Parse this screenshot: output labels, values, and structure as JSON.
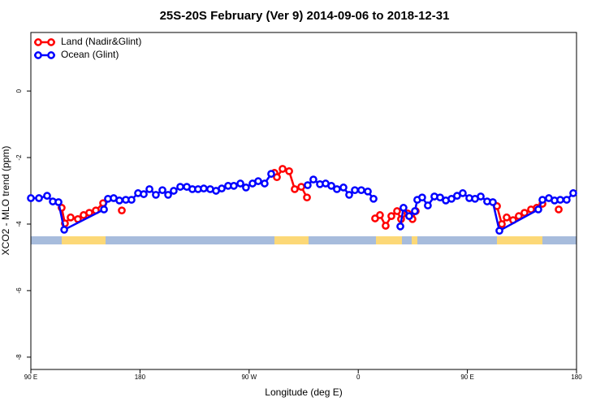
{
  "chart_data": {
    "type": "line",
    "title": "25S-20S February (Ver 9)   2014-09-06 to 2018-12-31",
    "xlabel": "Longitude (deg E)",
    "ylabel": "XCO2 - MLO trend (ppm)",
    "xlim": [
      90,
      540
    ],
    "ylim": [
      -8.37,
      1.76
    ],
    "xticks": [
      {
        "value": 90,
        "label": "90 E"
      },
      180,
      {
        "value": 270,
        "label": "90 W"
      },
      {
        "value": 360,
        "label": "0"
      },
      {
        "value": 450,
        "label": "90 E"
      },
      {
        "value": 540,
        "label": "180"
      }
    ],
    "yticks": [
      0,
      -2,
      -4,
      -6,
      -8
    ],
    "legend": "top-left",
    "series": [
      {
        "name": "Land (Nadir&Glint)",
        "color": "#ff0000",
        "x": [
          115.4,
          118.1,
          122.8,
          128.8,
          133.5,
          138.2,
          143.6,
          149.6,
          null,
          165.0,
          null,
          290.9,
          292.9,
          297.6,
          303.0,
          307.6,
          313.0,
          317.7,
          null,
          373.9,
          377.9,
          382.6,
          387.3,
          392.0,
          395.3,
          400.7,
          404.7,
          407.4,
          null,
          474.4,
          478.4,
          482.4,
          487.7,
          492.4,
          497.1,
          502.5,
          507.2,
          511.9,
          null,
          525.3
        ],
        "values": [
          -3.51,
          -3.98,
          -3.8,
          -3.85,
          -3.73,
          -3.66,
          -3.59,
          -3.37,
          null,
          -3.59,
          null,
          -2.46,
          -2.59,
          -2.34,
          -2.41,
          -2.95,
          -2.88,
          -3.2,
          null,
          -3.83,
          -3.73,
          -4.05,
          -3.76,
          -3.61,
          -3.85,
          -3.68,
          -3.85,
          -3.61,
          null,
          -3.46,
          -4.0,
          -3.8,
          -3.88,
          -3.76,
          -3.66,
          -3.56,
          -3.51,
          -3.39,
          null,
          -3.56
        ]
      },
      {
        "name": "Ocean (Glint)",
        "color": "#0000ff",
        "x": [
          90.0,
          96.7,
          103.4,
          108.1,
          112.8,
          117.5,
          150.3,
          153.6,
          158.3,
          163.0,
          168.3,
          173.0,
          178.4,
          183.1,
          187.8,
          193.1,
          198.5,
          203.2,
          207.8,
          213.2,
          218.6,
          223.2,
          227.9,
          232.6,
          237.9,
          242.7,
          247.4,
          252.7,
          257.4,
          262.8,
          267.4,
          272.8,
          277.5,
          282.8,
          288.2,
          null,
          318.3,
          323.0,
          328.4,
          333.1,
          337.8,
          342.4,
          347.8,
          352.5,
          357.2,
          362.5,
          367.9,
          372.6,
          null,
          394.7,
          397.3,
          402.0,
          406.7,
          408.7,
          412.7,
          417.4,
          422.8,
          427.5,
          432.2,
          436.9,
          441.5,
          446.2,
          451.6,
          456.3,
          461.0,
          466.3,
          471.0,
          476.4,
          508.5,
          511.9,
          517.2,
          521.9,
          526.6,
          531.9,
          537.3
        ],
        "values": [
          -3.22,
          -3.22,
          -3.15,
          -3.32,
          -3.34,
          -4.17,
          -3.56,
          -3.24,
          -3.22,
          -3.29,
          -3.27,
          -3.27,
          -3.07,
          -3.1,
          -2.95,
          -3.12,
          -2.98,
          -3.12,
          -3.0,
          -2.88,
          -2.88,
          -2.95,
          -2.95,
          -2.93,
          -2.95,
          -3.0,
          -2.93,
          -2.85,
          -2.85,
          -2.78,
          -2.9,
          -2.78,
          -2.71,
          -2.78,
          -2.49,
          null,
          -2.83,
          -2.66,
          -2.8,
          -2.78,
          -2.85,
          -2.95,
          -2.9,
          -3.12,
          -2.98,
          -2.98,
          -3.02,
          -3.24,
          null,
          -4.07,
          -3.51,
          -3.76,
          -3.61,
          -3.27,
          -3.2,
          -3.44,
          -3.17,
          -3.2,
          -3.29,
          -3.24,
          -3.15,
          -3.07,
          -3.22,
          -3.24,
          -3.17,
          -3.32,
          -3.34,
          -4.2,
          -3.56,
          -3.27,
          -3.22,
          -3.29,
          -3.27,
          -3.27,
          -3.07
        ]
      }
    ]
  }
}
